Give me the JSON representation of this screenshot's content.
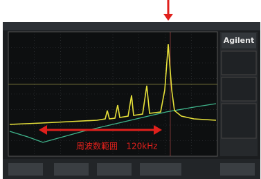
{
  "panel": {
    "brand": "Agilent"
  },
  "annotation": {
    "label": "周波数範囲",
    "value": "120kHz"
  }
}
